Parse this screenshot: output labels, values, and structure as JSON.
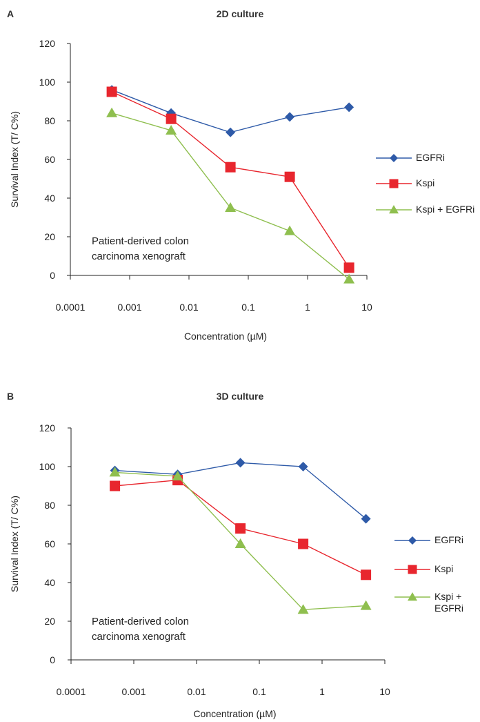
{
  "colors": {
    "egfri": "#2e5aa8",
    "kspi": "#e8262e",
    "combo": "#8fbf4f",
    "axis": "#222222"
  },
  "chart_data": [
    {
      "type": "line",
      "panel_label": "A",
      "title": "2D culture",
      "xlabel": "Concentration (µM)",
      "ylabel": "Survival Index (T/ C%)",
      "x_scale": "log",
      "xlim": [
        0.0001,
        10
      ],
      "ylim": [
        0,
        120
      ],
      "x_ticks": [
        "0.0001",
        "0.001",
        "0.01",
        "0.1",
        "1",
        "10"
      ],
      "y_ticks": [
        "0",
        "20",
        "40",
        "60",
        "80",
        "100",
        "120"
      ],
      "x": [
        0.0005,
        0.005,
        0.05,
        0.5,
        5
      ],
      "series": [
        {
          "name": "EGFRi",
          "marker": "diamond",
          "color_key": "egfri",
          "values": [
            96,
            84,
            74,
            82,
            87
          ]
        },
        {
          "name": "Kspi",
          "marker": "square",
          "color_key": "kspi",
          "values": [
            95,
            81,
            56,
            51,
            4
          ]
        },
        {
          "name": "Kspi + EGFRi",
          "marker": "triangle",
          "color_key": "combo",
          "values": [
            84,
            75,
            35,
            23,
            -2
          ]
        }
      ],
      "annotation": [
        "Patient-derived colon",
        "carcinoma xenograft"
      ],
      "legend_position": "right"
    },
    {
      "type": "line",
      "panel_label": "B",
      "title": "3D culture",
      "xlabel": "Concentration (µM)",
      "ylabel": "Survival Index (T/ C%)",
      "x_scale": "log",
      "xlim": [
        0.0001,
        10
      ],
      "ylim": [
        0,
        120
      ],
      "x_ticks": [
        "0.0001",
        "0.001",
        "0.01",
        "0.1",
        "1",
        "10"
      ],
      "y_ticks": [
        "0",
        "20",
        "40",
        "60",
        "80",
        "100",
        "120"
      ],
      "x": [
        0.0005,
        0.005,
        0.05,
        0.5,
        5
      ],
      "series": [
        {
          "name": "EGFRi",
          "marker": "diamond",
          "color_key": "egfri",
          "values": [
            98,
            96,
            102,
            100,
            73
          ]
        },
        {
          "name": "Kspi",
          "marker": "square",
          "color_key": "kspi",
          "values": [
            90,
            93,
            68,
            60,
            44
          ]
        },
        {
          "name": "Kspi + EGFRi",
          "legend_lines": [
            "Kspi +",
            "EGFRi"
          ],
          "marker": "triangle",
          "color_key": "combo",
          "values": [
            97,
            95,
            60,
            26,
            28
          ]
        }
      ],
      "annotation": [
        "Patient-derived colon",
        "carcinoma xenograft"
      ],
      "legend_position": "right"
    }
  ]
}
